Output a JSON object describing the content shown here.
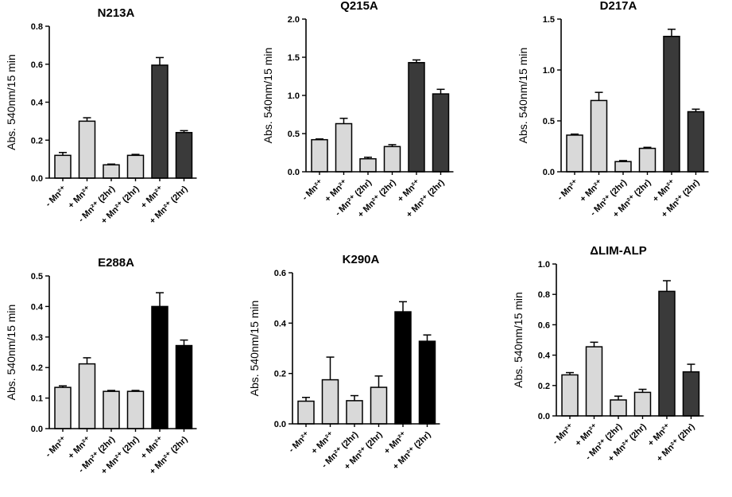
{
  "chart_data": [
    {
      "type": "bar",
      "title": "N213A",
      "ylabel": "Abs. 540nm/15 min",
      "ylim": [
        0,
        0.8
      ],
      "yticks": [
        "0.0",
        "0.2",
        "0.4",
        "0.6",
        "0.8"
      ],
      "categories": [
        "- Mn²⁺",
        "+ Mn²⁺",
        "- Mn²⁺ (2hr)",
        "+ Mn²⁺ (2hr)",
        "+ Mn²⁺",
        "+ Mn²⁺ (2hr)"
      ],
      "values": [
        0.12,
        0.3,
        0.07,
        0.12,
        0.595,
        0.24
      ],
      "errors": [
        0.015,
        0.018,
        0.004,
        0.005,
        0.04,
        0.01
      ],
      "colors": [
        "#d9d9d9",
        "#d9d9d9",
        "#d9d9d9",
        "#d9d9d9",
        "#3a3a3a",
        "#3a3a3a"
      ]
    },
    {
      "type": "bar",
      "title": "Q215A",
      "ylabel": "Abs. 540nm/15 min",
      "ylim": [
        0,
        2.0
      ],
      "yticks": [
        "0.0",
        "0.5",
        "1.0",
        "1.5",
        "2.0"
      ],
      "categories": [
        "- Mn²⁺",
        "+ Mn²⁺",
        "- Mn²⁺ (2hr)",
        "+ Mn²⁺ (2hr)",
        "+ Mn²⁺",
        "+ Mn²⁺ (2hr)"
      ],
      "values": [
        0.42,
        0.63,
        0.17,
        0.33,
        1.43,
        1.02
      ],
      "errors": [
        0.01,
        0.07,
        0.02,
        0.025,
        0.035,
        0.06
      ],
      "colors": [
        "#d9d9d9",
        "#d9d9d9",
        "#d9d9d9",
        "#d9d9d9",
        "#3a3a3a",
        "#3a3a3a"
      ]
    },
    {
      "type": "bar",
      "title": "D217A",
      "ylabel": "Abs. 540nm/15 min",
      "ylim": [
        0,
        1.5
      ],
      "yticks": [
        "0.0",
        "0.5",
        "1.0",
        "1.5"
      ],
      "categories": [
        "- Mn²⁺",
        "+ Mn²⁺",
        "- Mn²⁺ (2hr)",
        "+ Mn²⁺ (2hr)",
        "+ Mn²⁺",
        "+ Mn²⁺ (2hr)"
      ],
      "values": [
        0.36,
        0.7,
        0.1,
        0.23,
        1.33,
        0.59
      ],
      "errors": [
        0.01,
        0.08,
        0.01,
        0.01,
        0.07,
        0.025
      ],
      "colors": [
        "#d9d9d9",
        "#d9d9d9",
        "#d9d9d9",
        "#d9d9d9",
        "#3a3a3a",
        "#3a3a3a"
      ]
    },
    {
      "type": "bar",
      "title": "E288A",
      "ylabel": "Abs. 540nm/15 min",
      "ylim": [
        0,
        0.5
      ],
      "yticks": [
        "0.0",
        "0.1",
        "0.2",
        "0.3",
        "0.4",
        "0.5"
      ],
      "categories": [
        "- Mn²⁺",
        "+ Mn²⁺",
        "- Mn²⁺ (2hr)",
        "+ Mn²⁺ (2hr)",
        "+ Mn²⁺",
        "+ Mn²⁺ (2hr)"
      ],
      "values": [
        0.135,
        0.212,
        0.122,
        0.122,
        0.4,
        0.272
      ],
      "errors": [
        0.005,
        0.02,
        0.003,
        0.003,
        0.045,
        0.018
      ],
      "colors": [
        "#d9d9d9",
        "#d9d9d9",
        "#d9d9d9",
        "#d9d9d9",
        "#000000",
        "#000000"
      ]
    },
    {
      "type": "bar",
      "title": "K290A",
      "ylabel": "Abs. 540nm/15 min",
      "ylim": [
        0,
        0.6
      ],
      "yticks": [
        "0.0",
        "0.2",
        "0.4",
        "0.6"
      ],
      "categories": [
        "- Mn²⁺",
        "+ Mn²⁺",
        "- Mn²⁺ (2hr)",
        "+ Mn²⁺ (2hr)",
        "+ Mn²⁺",
        "+ Mn²⁺ (2hr)"
      ],
      "values": [
        0.09,
        0.175,
        0.092,
        0.145,
        0.445,
        0.328
      ],
      "errors": [
        0.015,
        0.09,
        0.02,
        0.045,
        0.04,
        0.025
      ],
      "colors": [
        "#d9d9d9",
        "#d9d9d9",
        "#d9d9d9",
        "#d9d9d9",
        "#000000",
        "#000000"
      ]
    },
    {
      "type": "bar",
      "title": "ΔLIM-ALP",
      "ylabel": "Abs. 540nm/15 min",
      "ylim": [
        0,
        1.0
      ],
      "yticks": [
        "0.0",
        "0.2",
        "0.4",
        "0.6",
        "0.8",
        "1.0"
      ],
      "categories": [
        "- Mn²⁺",
        "+ Mn²⁺",
        "- Mn²⁺ (2hr)",
        "+ Mn²⁺ (2hr)",
        "+ Mn²⁺",
        "+ Mn²⁺ (2hr)"
      ],
      "values": [
        0.27,
        0.455,
        0.105,
        0.155,
        0.82,
        0.29
      ],
      "errors": [
        0.015,
        0.03,
        0.025,
        0.02,
        0.07,
        0.05
      ],
      "colors": [
        "#d9d9d9",
        "#d9d9d9",
        "#d9d9d9",
        "#d9d9d9",
        "#3a3a3a",
        "#3a3a3a"
      ]
    }
  ]
}
